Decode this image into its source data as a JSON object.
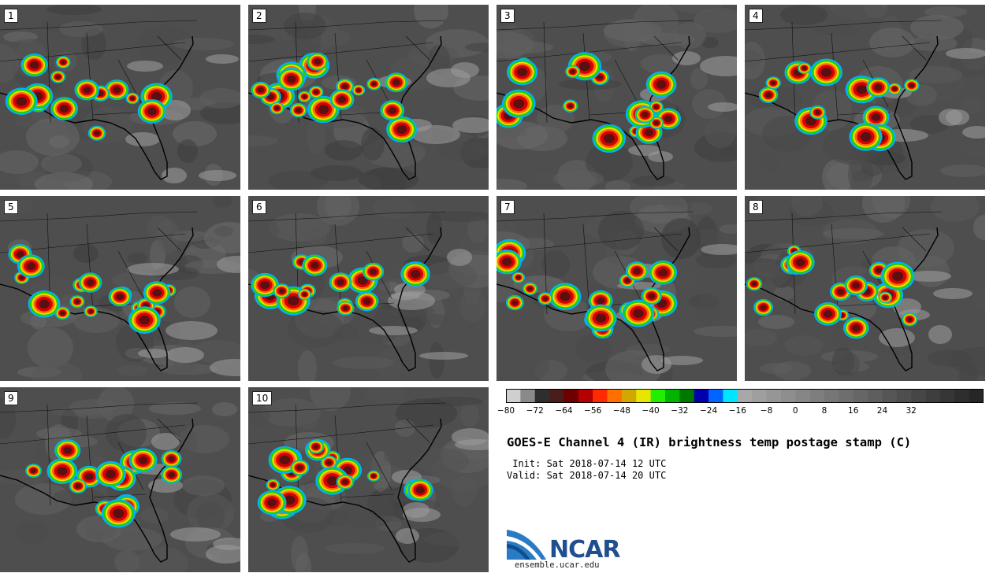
{
  "panels": [
    {
      "label": "1"
    },
    {
      "label": "2"
    },
    {
      "label": "3"
    },
    {
      "label": "4"
    },
    {
      "label": "5"
    },
    {
      "label": "6"
    },
    {
      "label": "7"
    },
    {
      "label": "8"
    },
    {
      "label": "9"
    },
    {
      "label": "10"
    }
  ],
  "colorbar": {
    "colors": [
      "#cfcfcf",
      "#8a8a8a",
      "#2e2e2e",
      "#4a1c1c",
      "#6e0000",
      "#b40000",
      "#ff2a00",
      "#ff7000",
      "#d2a800",
      "#e6e600",
      "#22ee00",
      "#00b400",
      "#007800",
      "#0000aa",
      "#0064ff",
      "#00e6ff",
      "#a8a8a8",
      "#9f9f9f",
      "#969696",
      "#8e8e8e",
      "#868686",
      "#7e7e7e",
      "#767676",
      "#6e6e6e",
      "#666666",
      "#5e5e5e",
      "#565656",
      "#4e4e4e",
      "#464646",
      "#3e3e3e",
      "#363636",
      "#2e2e2e",
      "#262626"
    ],
    "ticks": [
      "−80",
      "−72",
      "−64",
      "−56",
      "−48",
      "−40",
      "−32",
      "−24",
      "−16",
      "−8",
      "0",
      "8",
      "16",
      "24",
      "32"
    ]
  },
  "title": "GOES-E Channel 4 (IR) brightness temp postage stamp (C)",
  "init_line": " Init: Sat 2018-07-14 12 UTC",
  "valid_line": "Valid: Sat 2018-07-14 20 UTC",
  "logo_text": "NCAR",
  "site": "ensemble.ucar.edu"
}
